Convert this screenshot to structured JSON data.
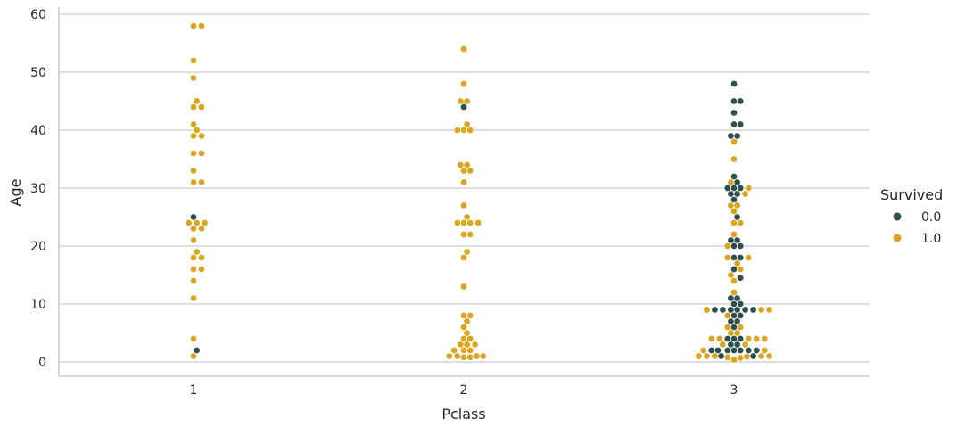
{
  "chart_data": {
    "type": "scatter",
    "subtype": "swarm",
    "xlabel": "Pclass",
    "ylabel": "Age",
    "categories": [
      "1",
      "2",
      "3"
    ],
    "yticks": [
      0,
      10,
      20,
      30,
      40,
      50,
      60
    ],
    "ylim": [
      -2.5,
      62
    ],
    "grid": "horizontal",
    "legend": {
      "title": "Survived",
      "placement": "right",
      "entries": [
        {
          "label": "0.0",
          "color": "#2f4f4f"
        },
        {
          "label": "1.0",
          "color": "#daa520"
        }
      ]
    },
    "series": [
      {
        "name": "0.0",
        "color": "#2f4f4f",
        "points": [
          {
            "x": "1",
            "ages": [
              25,
              2
            ]
          },
          {
            "x": "2",
            "ages": [
              44
            ]
          },
          {
            "x": "3",
            "ages": [
              48,
              45,
              45,
              43,
              41,
              41,
              39,
              39,
              32,
              31,
              30,
              30,
              30,
              29,
              29,
              28,
              25,
              21,
              21,
              20,
              20,
              18,
              18,
              16,
              14.5,
              11,
              11,
              10,
              10,
              9,
              9,
              9,
              9,
              9,
              9,
              8,
              8,
              7,
              7,
              6,
              4,
              4,
              4,
              3,
              3,
              2,
              2,
              2,
              2,
              2,
              2,
              2,
              1,
              1
            ]
          }
        ]
      },
      {
        "name": "1.0",
        "color": "#daa520",
        "points": [
          {
            "x": "1",
            "ages": [
              58,
              58,
              52,
              49,
              45,
              44,
              44,
              41,
              40,
              39,
              39,
              36,
              36,
              33,
              31,
              31,
              24,
              24,
              24,
              23,
              23,
              21,
              19,
              18,
              18,
              16,
              16,
              14,
              11,
              4,
              1
            ]
          },
          {
            "x": "2",
            "ages": [
              54,
              48,
              45,
              45,
              41,
              40,
              40,
              40,
              34,
              34,
              33,
              33,
              31,
              27,
              25,
              24,
              24,
              24,
              24,
              22,
              22,
              19,
              18,
              13,
              8,
              8,
              7,
              6,
              5,
              4,
              4,
              3,
              3,
              3,
              2,
              2,
              2,
              1,
              1,
              1,
              1,
              0.8,
              0.8
            ]
          },
          {
            "x": "3",
            "ages": [
              38,
              35,
              31,
              30,
              29,
              27,
              27,
              26,
              24,
              24,
              22,
              20,
              18,
              18,
              17,
              16,
              15,
              14,
              12,
              9,
              9,
              9,
              8,
              6,
              6,
              5,
              5,
              4,
              4,
              4,
              4,
              4,
              3,
              3,
              2,
              2,
              1,
              1,
              1,
              1,
              1,
              0.9,
              0.8,
              0.7,
              0.4
            ]
          }
        ]
      }
    ]
  }
}
